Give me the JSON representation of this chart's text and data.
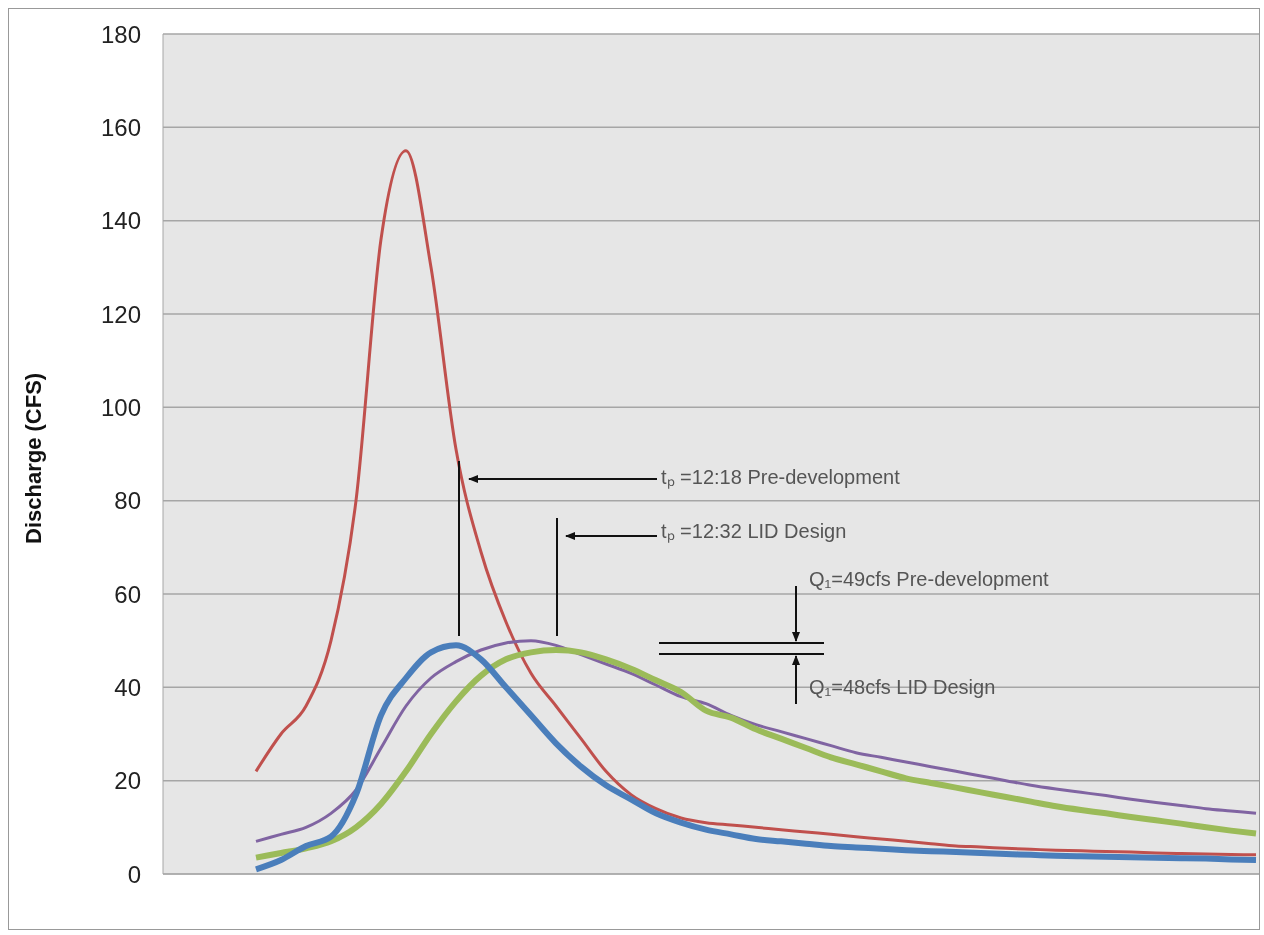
{
  "chart_data": {
    "type": "line",
    "ylabel": "Discharge (CFS)",
    "categories": [
      null,
      null,
      null,
      null,
      null,
      null,
      null,
      null,
      null,
      null,
      null,
      null,
      null,
      null,
      null,
      null,
      null,
      null,
      null,
      null,
      null,
      null,
      null,
      null,
      null,
      null,
      null,
      null,
      null,
      null,
      null,
      null,
      null,
      null,
      null,
      null,
      null,
      null,
      null,
      null,
      null
    ],
    "series": [
      {
        "color": "#c0504d",
        "values": [
          22,
          30,
          36,
          50,
          80,
          136,
          155,
          130,
          91,
          69,
          54,
          43,
          36,
          29,
          22,
          17,
          14,
          12,
          11,
          10.5,
          10,
          9.5,
          9,
          8.5,
          8,
          7.5,
          7,
          6.5,
          6,
          5.8,
          5.5,
          5.3,
          5.1,
          5,
          4.8,
          4.7,
          4.5,
          4.4,
          4.3,
          4.2,
          4.1
        ]
      },
      {
        "color": "#8064a2",
        "values": [
          7,
          8.5,
          10,
          13,
          18,
          27,
          36,
          42,
          45.5,
          48,
          49.5,
          50,
          49,
          47,
          45,
          43,
          40.5,
          38,
          36.5,
          34,
          32,
          30.5,
          29,
          27.5,
          26,
          25,
          24,
          23,
          22,
          21,
          20,
          19,
          18.2,
          17.5,
          16.8,
          16,
          15.3,
          14.7,
          14,
          13.5,
          13
        ]
      },
      {
        "color": "#9bbb59",
        "values": [
          3.5,
          4.5,
          5.5,
          7,
          10,
          15,
          22,
          30,
          37,
          42.5,
          46,
          47.5,
          48,
          47.5,
          46,
          44,
          41.5,
          39,
          35,
          33.5,
          31,
          29,
          27,
          25,
          23.5,
          22,
          20.5,
          19.5,
          18.5,
          17.5,
          16.5,
          15.5,
          14.5,
          13.7,
          13,
          12.2,
          11.5,
          10.8,
          10,
          9.3,
          8.7
        ]
      },
      {
        "color": "#4a7ebb",
        "values": [
          1,
          3,
          6,
          8,
          17,
          34,
          42,
          47.5,
          49,
          46,
          40,
          34,
          28,
          23,
          19,
          16,
          13,
          11,
          9.5,
          8.5,
          7.5,
          7,
          6.5,
          6,
          5.7,
          5.4,
          5.1,
          4.9,
          4.7,
          4.5,
          4.3,
          4.1,
          3.9,
          3.8,
          3.7,
          3.6,
          3.5,
          3.4,
          3.3,
          3.1,
          3
        ]
      }
    ],
    "ylim": [
      0,
      180
    ],
    "yticks": [
      0,
      20,
      40,
      60,
      80,
      100,
      120,
      140,
      160,
      180
    ],
    "grid": "y",
    "tick_labels": "y",
    "marker": "none",
    "line_style": "solid",
    "annotations": [
      {
        "text": "tₚ =12:18 Pre-development"
      },
      {
        "text": "tₚ =12:32 LID Design"
      },
      "Q₁=49cfs Pre-development",
      "Q₁=48cfs LID Design"
    ]
  }
}
